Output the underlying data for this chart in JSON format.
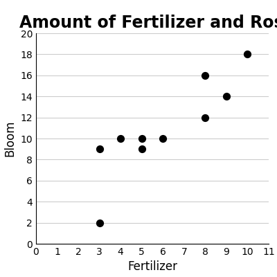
{
  "title": "Amount of Fertilizer and Rose Blooms",
  "xlabel": "Fertilizer",
  "ylabel": "Bloom",
  "x": [
    3,
    3,
    4,
    5,
    5,
    6,
    8,
    8,
    9,
    10
  ],
  "y": [
    2,
    9,
    10,
    10,
    9,
    10,
    16,
    12,
    14,
    18
  ],
  "xlim": [
    0,
    11
  ],
  "ylim": [
    0,
    20
  ],
  "xticks": [
    0,
    1,
    2,
    3,
    4,
    5,
    6,
    7,
    8,
    9,
    10,
    11
  ],
  "yticks": [
    0,
    2,
    4,
    6,
    8,
    10,
    12,
    14,
    16,
    18,
    20
  ],
  "marker_color": "black",
  "marker_size": 50,
  "grid_color": "#cccccc",
  "background_color": "#ffffff",
  "title_fontsize": 17,
  "label_fontsize": 12
}
